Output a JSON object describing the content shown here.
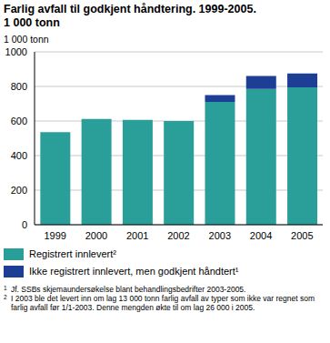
{
  "chart_data": {
    "type": "bar",
    "title": "Farlig avfall til godkjent håndtering. 1999-2005.",
    "subtitle": "1 000 tonn",
    "y_label": "1 000 tonn",
    "categories": [
      "1999",
      "2000",
      "2001",
      "2002",
      "2003",
      "2004",
      "2005"
    ],
    "series": [
      {
        "name": "Registrert innlevert²",
        "color": "#2a9f99",
        "values": [
          535,
          612,
          607,
          600,
          710,
          785,
          795
        ]
      },
      {
        "name": "Ikke registrert innlevert, men godkjent håndtert¹",
        "color": "#1d3e95",
        "values": [
          null,
          null,
          null,
          null,
          40,
          75,
          80
        ]
      }
    ],
    "stacked": true,
    "ylim": [
      0,
      1000
    ],
    "yticks": [
      0,
      200,
      400,
      600,
      800,
      1000
    ],
    "grid": true,
    "footnotes": [
      {
        "mark": "1",
        "text": "Jf. SSBs skjemaundersøkelse blant behandlingsbedrifter 2003-2005."
      },
      {
        "mark": "2",
        "text": "I 2003 ble det levert inn om lag 13 000 tonn farlig avfall av typer som ikke var regnet som farlig avfall før 1/1-2003. Denne mengden økte til om lag 26 000 i 2005."
      }
    ]
  }
}
